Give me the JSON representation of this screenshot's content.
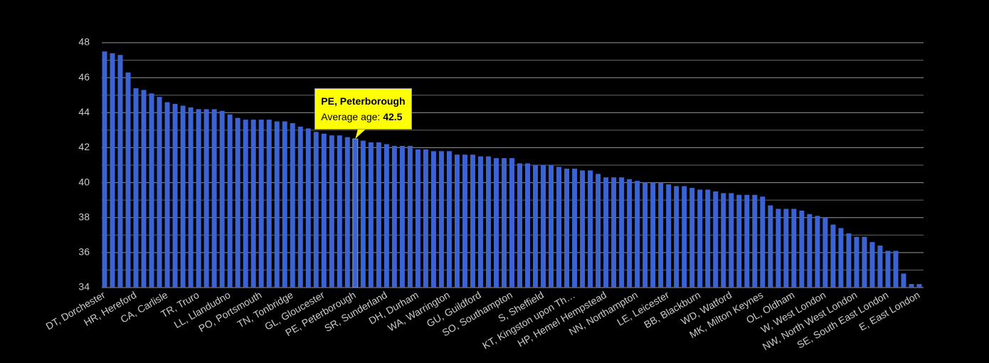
{
  "chart_data": {
    "type": "bar",
    "categories": [
      "DT, Dorchester",
      null,
      null,
      null,
      "HR, Hereford",
      null,
      null,
      null,
      "CA, Carlisle",
      null,
      null,
      null,
      "TR, Truro",
      null,
      null,
      null,
      "LL, Llandudno",
      null,
      null,
      null,
      "PO, Portsmouth",
      null,
      null,
      null,
      "TN, Tonbridge",
      null,
      null,
      null,
      "GL, Gloucester",
      null,
      null,
      null,
      "PE, Peterborough",
      null,
      null,
      null,
      "SR, Sunderland",
      null,
      null,
      null,
      "DH, Durham",
      null,
      null,
      null,
      "WA, Warrington",
      null,
      null,
      null,
      "GU, Guildford",
      null,
      null,
      null,
      "SO, Southampton",
      null,
      null,
      null,
      "S, Sheffield",
      null,
      null,
      null,
      "KT, Kingston upon Th…",
      null,
      null,
      null,
      "HP, Hemel Hempstead",
      null,
      null,
      null,
      "NN, Northampton",
      null,
      null,
      null,
      "LE, Leicester",
      null,
      null,
      null,
      "BB, Blackburn",
      null,
      null,
      null,
      "WD, Watford",
      null,
      null,
      null,
      "MK, Milton Keynes",
      null,
      null,
      null,
      "OL, Oldham",
      null,
      null,
      null,
      "W, West London",
      null,
      null,
      null,
      "NW, North West London",
      null,
      null,
      null,
      "SE, South East London",
      null,
      null,
      null,
      "E, East London"
    ],
    "values": [
      47.5,
      47.4,
      47.3,
      46.3,
      45.4,
      45.3,
      45.1,
      44.9,
      44.6,
      44.5,
      44.4,
      44.3,
      44.2,
      44.2,
      44.2,
      44.1,
      43.9,
      43.7,
      43.6,
      43.6,
      43.6,
      43.6,
      43.5,
      43.5,
      43.4,
      43.2,
      43.1,
      42.9,
      42.8,
      42.7,
      42.7,
      42.6,
      42.5,
      42.4,
      42.3,
      42.3,
      42.2,
      42.1,
      42.1,
      42.1,
      41.9,
      41.9,
      41.8,
      41.8,
      41.8,
      41.6,
      41.6,
      41.6,
      41.5,
      41.5,
      41.4,
      41.4,
      41.4,
      41.1,
      41.1,
      41.0,
      41.0,
      41.0,
      40.9,
      40.8,
      40.8,
      40.7,
      40.7,
      40.5,
      40.3,
      40.3,
      40.3,
      40.2,
      40.1,
      40.0,
      40.0,
      40.0,
      39.9,
      39.8,
      39.8,
      39.7,
      39.6,
      39.6,
      39.5,
      39.4,
      39.4,
      39.3,
      39.3,
      39.3,
      39.2,
      38.7,
      38.5,
      38.5,
      38.5,
      38.4,
      38.2,
      38.1,
      38.0,
      37.6,
      37.4,
      37.1,
      36.9,
      36.9,
      36.6,
      36.4,
      36.1,
      36.1,
      34.8,
      34.2,
      34.2
    ],
    "color": "#3b63d4",
    "ylim": [
      34,
      48
    ],
    "yticks": [
      34,
      36,
      38,
      40,
      42,
      44,
      46,
      48
    ],
    "grid": true,
    "tooltip": {
      "category": "PE, Peterborough",
      "label": "Average age:"
    }
  }
}
